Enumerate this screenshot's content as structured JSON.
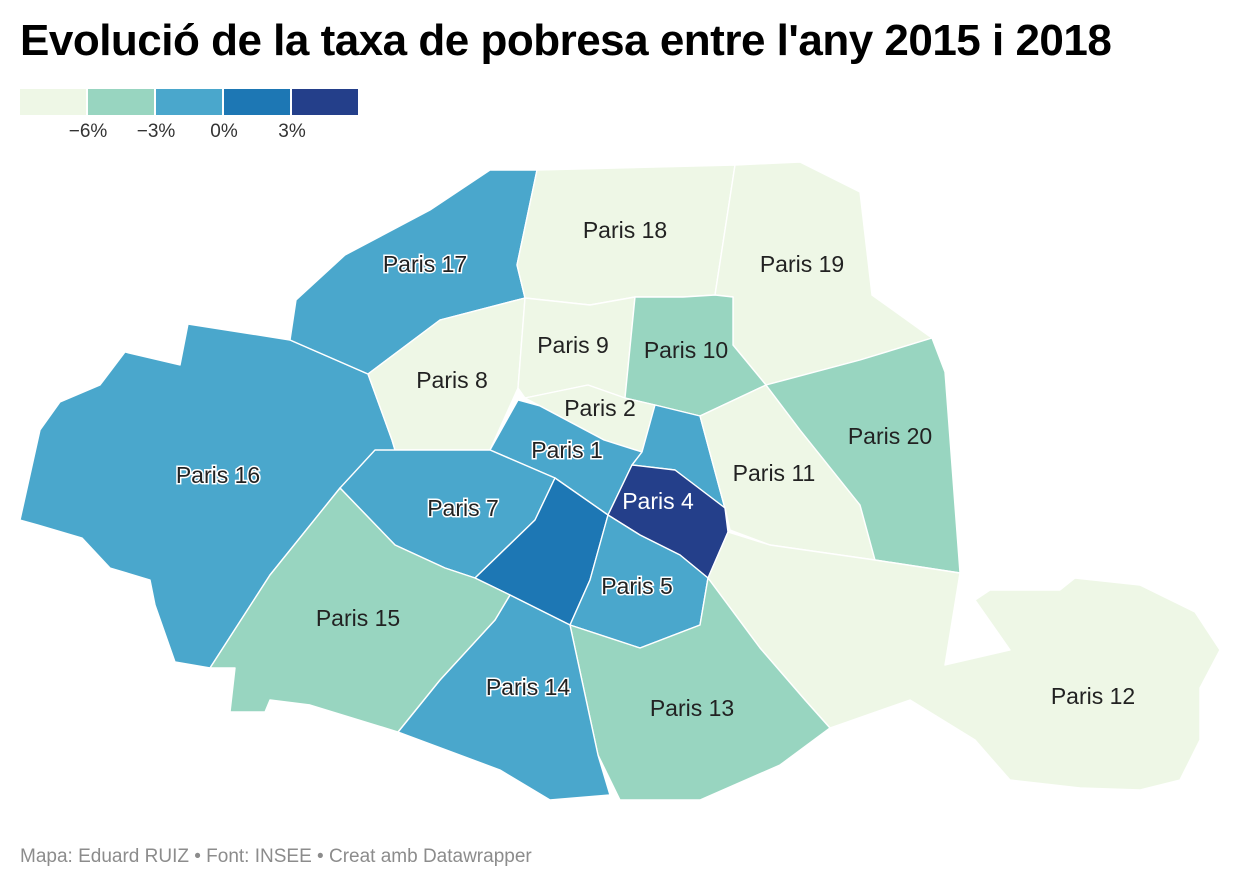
{
  "title": "Evolució de la taxa de pobresa entre l'any 2015 i 2018",
  "legend": {
    "colors": [
      "#eef7e6",
      "#98d5c0",
      "#4aa7cc",
      "#1d77b4",
      "#243f8a"
    ],
    "ticks": [
      "−6%",
      "−3%",
      "0%",
      "3%"
    ]
  },
  "districts": [
    {
      "id": "1",
      "label": "Paris 1",
      "color": "#4aa7cc"
    },
    {
      "id": "2",
      "label": "Paris 2",
      "color": "#eef7e6"
    },
    {
      "id": "4",
      "label": "Paris 4",
      "color": "#243f8a"
    },
    {
      "id": "5",
      "label": "Paris 5",
      "color": "#4aa7cc"
    },
    {
      "id": "6",
      "label": "",
      "color": "#1d77b4"
    },
    {
      "id": "7",
      "label": "Paris 7",
      "color": "#4aa7cc"
    },
    {
      "id": "8",
      "label": "Paris 8",
      "color": "#eef7e6"
    },
    {
      "id": "9",
      "label": "Paris 9",
      "color": "#eef7e6"
    },
    {
      "id": "10",
      "label": "Paris 10",
      "color": "#98d5c0"
    },
    {
      "id": "11",
      "label": "Paris 11",
      "color": "#eef7e6"
    },
    {
      "id": "12",
      "label": "Paris 12",
      "color": "#eef7e6"
    },
    {
      "id": "13",
      "label": "Paris 13",
      "color": "#98d5c0"
    },
    {
      "id": "14",
      "label": "Paris 14",
      "color": "#4aa7cc"
    },
    {
      "id": "15",
      "label": "Paris 15",
      "color": "#98d5c0"
    },
    {
      "id": "16",
      "label": "Paris 16",
      "color": "#4aa7cc"
    },
    {
      "id": "17",
      "label": "Paris 17",
      "color": "#4aa7cc"
    },
    {
      "id": "18",
      "label": "Paris 18",
      "color": "#eef7e6"
    },
    {
      "id": "19",
      "label": "Paris 19",
      "color": "#eef7e6"
    },
    {
      "id": "20",
      "label": "Paris 20",
      "color": "#98d5c0"
    }
  ],
  "footer": "Mapa: Eduard RUIZ • Font: INSEE • Creat amb Datawrapper"
}
